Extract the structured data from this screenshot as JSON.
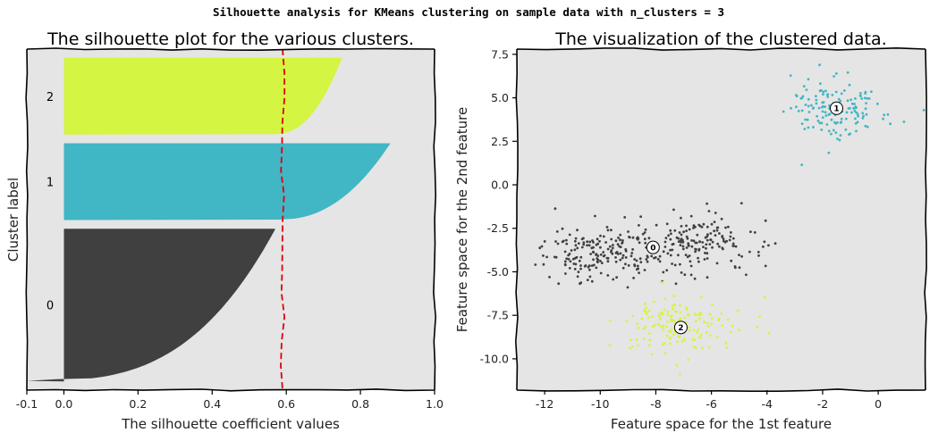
{
  "suptitle": "Silhouette analysis for KMeans clustering on sample data with n_clusters = 3",
  "colors": {
    "cluster_0": "#404040",
    "cluster_1": "#41b6c4",
    "cluster_2": "#d4f542",
    "average_line": "#e0000e",
    "axes_background": "#e5e5e5"
  },
  "chart_data": [
    {
      "type": "bar",
      "title": "The silhouette plot for the various clusters.",
      "xlabel": "The silhouette coefficient values",
      "ylabel": "Cluster label",
      "xlim": [
        -0.1,
        1.0
      ],
      "xticks": [
        "-0.1",
        "0.0",
        "0.2",
        "0.4",
        "0.6",
        "0.8",
        "1.0"
      ],
      "xtick_values": [
        -0.1,
        0.0,
        0.2,
        0.4,
        0.6,
        0.8,
        1.0
      ],
      "average_silhouette_score": 0.59,
      "grid": false,
      "clusters": [
        {
          "label": "0",
          "size": 175,
          "max_value": 0.57,
          "min_value": -0.1,
          "color": "#404040"
        },
        {
          "label": "1",
          "size": 88,
          "max_value": 0.88,
          "min_value": 0.58,
          "color": "#41b6c4"
        },
        {
          "label": "2",
          "size": 88,
          "max_value": 0.75,
          "min_value": 0.57,
          "color": "#d4f542"
        }
      ]
    },
    {
      "type": "scatter",
      "title": "The visualization of the clustered data.",
      "xlabel": "Feature space for the 1st feature",
      "ylabel": "Feature space for the 2nd feature",
      "xlim": [
        -13,
        1.7
      ],
      "ylim": [
        -11.8,
        7.8
      ],
      "xticks": [
        "-12",
        "-10",
        "-8",
        "-6",
        "-4",
        "-2",
        "0"
      ],
      "xtick_values": [
        -12,
        -10,
        -8,
        -6,
        -4,
        -2,
        0
      ],
      "yticks": [
        "-10.0",
        "-7.5",
        "-5.0",
        "-2.5",
        "0.0",
        "2.5",
        "5.0",
        "7.5"
      ],
      "ytick_values": [
        -10.0,
        -7.5,
        -5.0,
        -2.5,
        0.0,
        2.5,
        5.0,
        7.5
      ],
      "grid": false,
      "clusters": [
        {
          "label": "0",
          "center": [
            -8.1,
            -3.6
          ],
          "n_points": 350,
          "sub_blobs": [
            {
              "cx": -10.0,
              "cy": -3.9,
              "sx": 1.0,
              "sy": 0.85
            },
            {
              "cx": -6.5,
              "cy": -3.3,
              "sx": 1.0,
              "sy": 0.85
            }
          ],
          "color": "#404040"
        },
        {
          "label": "1",
          "center": [
            -1.5,
            4.4
          ],
          "n_points": 150,
          "sub_blobs": [
            {
              "cx": -1.5,
              "cy": 4.4,
              "sx": 0.9,
              "sy": 0.9
            }
          ],
          "color": "#41b6c4"
        },
        {
          "label": "2",
          "center": [
            -7.1,
            -8.2
          ],
          "n_points": 150,
          "sub_blobs": [
            {
              "cx": -7.1,
              "cy": -8.2,
              "sx": 1.0,
              "sy": 0.9
            }
          ],
          "color": "#d4f542"
        }
      ]
    }
  ]
}
